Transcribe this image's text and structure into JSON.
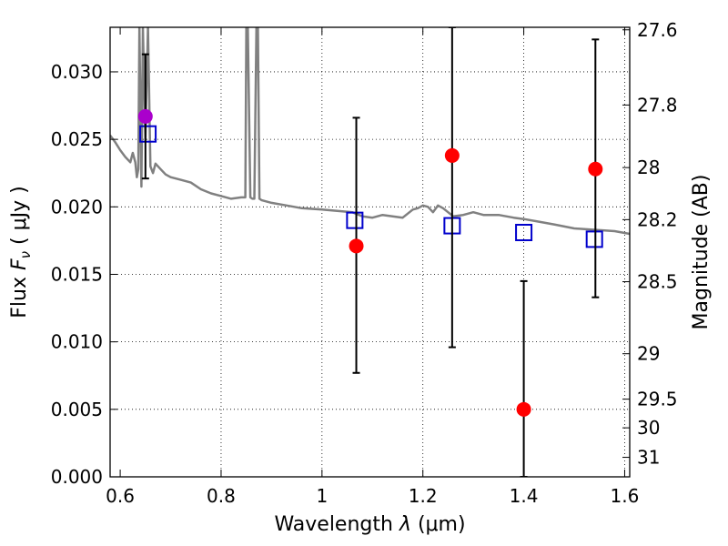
{
  "chart_data": {
    "type": "scatter",
    "xlabel": "Wavelength  λ (μm)",
    "ylabel": "Flux  F_ν  ( μJy )",
    "ylabel_parts": {
      "pre": "Flux ",
      "sym": "F",
      "sub": "ν",
      "post": "  ( μJy )"
    },
    "xlabel_parts": {
      "pre": "Wavelength  ",
      "sym": "λ",
      "post": " (μm)"
    },
    "y2label": "Magnitude (AB)",
    "xlim": [
      0.58,
      1.61
    ],
    "ylim": [
      0.0,
      0.0333
    ],
    "grid": true,
    "x_ticks": [
      0.6,
      0.8,
      1.0,
      1.2,
      1.4,
      1.6
    ],
    "x_tick_labels": [
      "0.6",
      "0.8",
      "1",
      "1.2",
      "1.4",
      "1.6"
    ],
    "y_ticks": [
      0.0,
      0.005,
      0.01,
      0.015,
      0.02,
      0.025,
      0.03
    ],
    "y_tick_labels": [
      "0.000",
      "0.005",
      "0.010",
      "0.015",
      "0.020",
      "0.025",
      "0.030"
    ],
    "y2_ticks": [
      {
        "mag": 27.6,
        "label": "27.6"
      },
      {
        "mag": 27.8,
        "label": "27.8"
      },
      {
        "mag": 28.0,
        "label": "28"
      },
      {
        "mag": 28.2,
        "label": "28.2"
      },
      {
        "mag": 28.5,
        "label": "28.5"
      },
      {
        "mag": 29.0,
        "label": "29"
      },
      {
        "mag": 29.5,
        "label": "29.5"
      },
      {
        "mag": 30.0,
        "label": "30"
      },
      {
        "mag": 31.0,
        "label": "31"
      }
    ],
    "series": [
      {
        "role": "model_spectrum",
        "style": "line",
        "color": "#808080",
        "x": [
          0.58,
          0.59,
          0.6,
          0.61,
          0.62,
          0.625,
          0.63,
          0.633,
          0.636,
          0.638,
          0.642,
          0.645,
          0.65,
          0.655,
          0.66,
          0.665,
          0.67,
          0.68,
          0.69,
          0.7,
          0.72,
          0.74,
          0.76,
          0.78,
          0.8,
          0.82,
          0.84,
          0.848,
          0.85,
          0.853,
          0.858,
          0.862,
          0.866,
          0.87,
          0.873,
          0.876,
          0.88,
          0.9,
          0.93,
          0.96,
          1.0,
          1.03,
          1.06,
          1.08,
          1.1,
          1.12,
          1.14,
          1.16,
          1.18,
          1.19,
          1.2,
          1.21,
          1.22,
          1.23,
          1.24,
          1.26,
          1.28,
          1.3,
          1.32,
          1.35,
          1.38,
          1.4,
          1.43,
          1.46,
          1.5,
          1.54,
          1.58,
          1.61
        ],
        "y": [
          0.0253,
          0.0248,
          0.0242,
          0.0237,
          0.0233,
          0.024,
          0.0233,
          0.0222,
          0.0228,
          0.0333,
          0.0215,
          0.0333,
          0.025,
          0.0333,
          0.023,
          0.0225,
          0.0232,
          0.0228,
          0.0224,
          0.0222,
          0.022,
          0.0218,
          0.0213,
          0.021,
          0.0208,
          0.0206,
          0.0207,
          0.0207,
          0.0333,
          0.0333,
          0.0207,
          0.0206,
          0.0206,
          0.0333,
          0.0333,
          0.0206,
          0.0205,
          0.0203,
          0.0201,
          0.0199,
          0.0198,
          0.0197,
          0.0196,
          0.0193,
          0.0192,
          0.0194,
          0.0193,
          0.0192,
          0.0198,
          0.0199,
          0.0201,
          0.02,
          0.0196,
          0.0201,
          0.0199,
          0.0193,
          0.0194,
          0.0196,
          0.0194,
          0.0194,
          0.0192,
          0.0191,
          0.0189,
          0.0187,
          0.0184,
          0.0183,
          0.0182,
          0.018
        ]
      },
      {
        "role": "model_bandpass",
        "style": "open-square",
        "color": "#0000cc",
        "x": [
          0.655,
          1.065,
          1.258,
          1.4,
          1.54
        ],
        "y": [
          0.0254,
          0.019,
          0.0186,
          0.0181,
          0.0176
        ]
      },
      {
        "role": "observed",
        "style": "filled-circle",
        "color": "#ff0000",
        "x": [
          1.068,
          1.258,
          1.4,
          1.542
        ],
        "y": [
          0.0171,
          0.0238,
          0.005,
          0.0228
        ],
        "err_low": [
          0.0077,
          0.0096,
          0.0,
          0.0133
        ],
        "err_high": [
          0.0266,
          0.0333,
          0.0145,
          0.0324
        ]
      },
      {
        "role": "observed",
        "style": "filled-circle",
        "color": "#aa00cc",
        "x": [
          0.65
        ],
        "y": [
          0.0267
        ],
        "err_low": [
          0.0221
        ],
        "err_high": [
          0.0313
        ]
      }
    ]
  }
}
